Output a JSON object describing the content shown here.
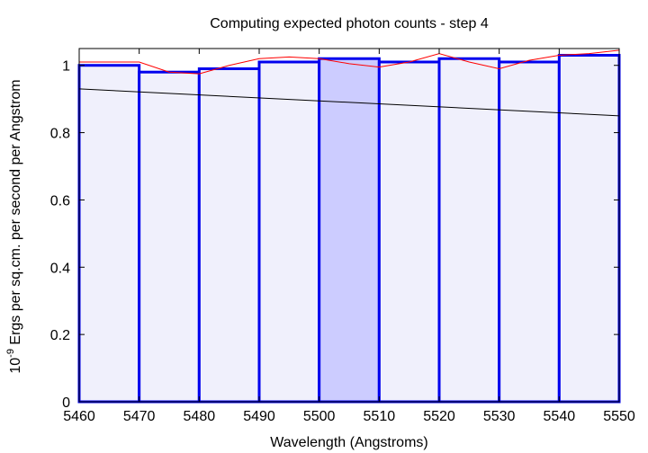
{
  "chart_data": {
    "type": "bar",
    "title": "Computing expected photon counts - step 4",
    "xlabel": "Wavelength (Angstroms)",
    "ylabel_prefix": "10",
    "ylabel_exponent": "-9",
    "ylabel_rest": " Ergs per sq.cm. per second per Angstrom",
    "xlim": [
      5460,
      5550
    ],
    "ylim": [
      0,
      1.05
    ],
    "xticks": [
      5460,
      5470,
      5480,
      5490,
      5500,
      5510,
      5520,
      5530,
      5540,
      5550
    ],
    "yticks": [
      0,
      0.2,
      0.4,
      0.6,
      0.8,
      1
    ],
    "ytick_labels": [
      "0",
      "0.2",
      "0.4",
      "0.6",
      "0.8",
      "1"
    ],
    "grid": false,
    "bins": [
      {
        "x0": 5460,
        "x1": 5470,
        "value": 1.0
      },
      {
        "x0": 5470,
        "x1": 5480,
        "value": 0.98
      },
      {
        "x0": 5480,
        "x1": 5490,
        "value": 0.99
      },
      {
        "x0": 5490,
        "x1": 5500,
        "value": 1.01
      },
      {
        "x0": 5500,
        "x1": 5510,
        "value": 1.02
      },
      {
        "x0": 5510,
        "x1": 5520,
        "value": 1.01
      },
      {
        "x0": 5520,
        "x1": 5530,
        "value": 1.02
      },
      {
        "x0": 5530,
        "x1": 5540,
        "value": 1.01
      },
      {
        "x0": 5540,
        "x1": 5550,
        "value": 1.03
      }
    ],
    "highlighted_bin": 4,
    "spectrum_line": {
      "x": [
        5460,
        5470,
        5475,
        5480,
        5485,
        5490,
        5495,
        5500,
        5505,
        5510,
        5515,
        5520,
        5525,
        5530,
        5535,
        5540,
        5545,
        5550
      ],
      "y": [
        1.01,
        1.01,
        0.98,
        0.975,
        1.0,
        1.02,
        1.025,
        1.02,
        1.005,
        0.995,
        1.01,
        1.035,
        1.01,
        0.99,
        1.015,
        1.03,
        1.035,
        1.045
      ]
    },
    "trend_line": {
      "x": [
        5460,
        5550
      ],
      "y": [
        0.93,
        0.85
      ]
    },
    "colors": {
      "bar_fill": "#f0f0fc",
      "highlight_fill": "#ccccff",
      "bar_stroke": "#0000ee",
      "spectrum": "#ff0000",
      "trend": "#000000",
      "axis": "#000000"
    }
  }
}
